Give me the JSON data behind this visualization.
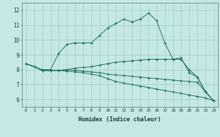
{
  "background_color": "#c5e8e5",
  "grid_color": "#9ec8c5",
  "line_color": "#1a6b60",
  "xlabel": "Humidex (Indice chaleur)",
  "xlim": [
    -0.5,
    23.5
  ],
  "ylim": [
    5.5,
    12.5
  ],
  "xticks": [
    0,
    1,
    2,
    3,
    4,
    5,
    6,
    7,
    8,
    9,
    10,
    11,
    12,
    13,
    14,
    15,
    16,
    17,
    18,
    19,
    20,
    21,
    22,
    23
  ],
  "yticks": [
    6,
    7,
    8,
    9,
    10,
    11,
    12
  ],
  "line1": {
    "x": [
      0,
      1,
      2,
      3,
      4,
      5,
      6,
      7,
      8,
      9,
      10,
      11,
      12,
      13,
      14,
      15,
      16,
      17,
      18,
      19,
      20,
      21,
      22,
      23
    ],
    "y": [
      8.4,
      8.2,
      8.0,
      8.0,
      9.1,
      9.7,
      9.8,
      9.8,
      9.8,
      10.3,
      10.8,
      11.1,
      11.4,
      11.2,
      11.4,
      11.8,
      11.3,
      9.8,
      8.7,
      8.8,
      7.8,
      7.5,
      6.5,
      5.9
    ]
  },
  "line2": {
    "x": [
      0,
      1,
      2,
      3,
      4,
      5,
      6,
      7,
      8,
      9,
      10,
      11,
      12,
      13,
      14,
      15,
      16,
      17,
      18,
      19,
      20,
      21,
      22,
      23
    ],
    "y": [
      8.4,
      8.2,
      7.95,
      7.95,
      7.95,
      8.0,
      8.1,
      8.15,
      8.2,
      8.3,
      8.4,
      8.5,
      8.55,
      8.6,
      8.65,
      8.7,
      8.7,
      8.7,
      8.7,
      8.7,
      8.0,
      7.5,
      6.5,
      5.9
    ]
  },
  "line3": {
    "x": [
      0,
      1,
      2,
      3,
      4,
      5,
      6,
      7,
      8,
      9,
      10,
      11,
      12,
      13,
      14,
      15,
      16,
      17,
      18,
      19,
      20,
      21,
      22,
      23
    ],
    "y": [
      8.4,
      8.2,
      7.95,
      7.95,
      7.95,
      8.0,
      7.95,
      7.9,
      7.85,
      7.8,
      7.7,
      7.65,
      7.6,
      7.55,
      7.5,
      7.45,
      7.4,
      7.35,
      7.3,
      7.25,
      7.2,
      7.15,
      6.5,
      5.9
    ]
  },
  "line4": {
    "x": [
      0,
      1,
      2,
      3,
      4,
      5,
      6,
      7,
      8,
      9,
      10,
      11,
      12,
      13,
      14,
      15,
      16,
      17,
      18,
      19,
      20,
      21,
      22,
      23
    ],
    "y": [
      8.4,
      8.2,
      7.95,
      7.95,
      7.95,
      7.9,
      7.85,
      7.8,
      7.7,
      7.6,
      7.4,
      7.2,
      7.1,
      7.0,
      6.9,
      6.8,
      6.7,
      6.6,
      6.5,
      6.4,
      6.3,
      6.2,
      6.1,
      5.9
    ]
  }
}
